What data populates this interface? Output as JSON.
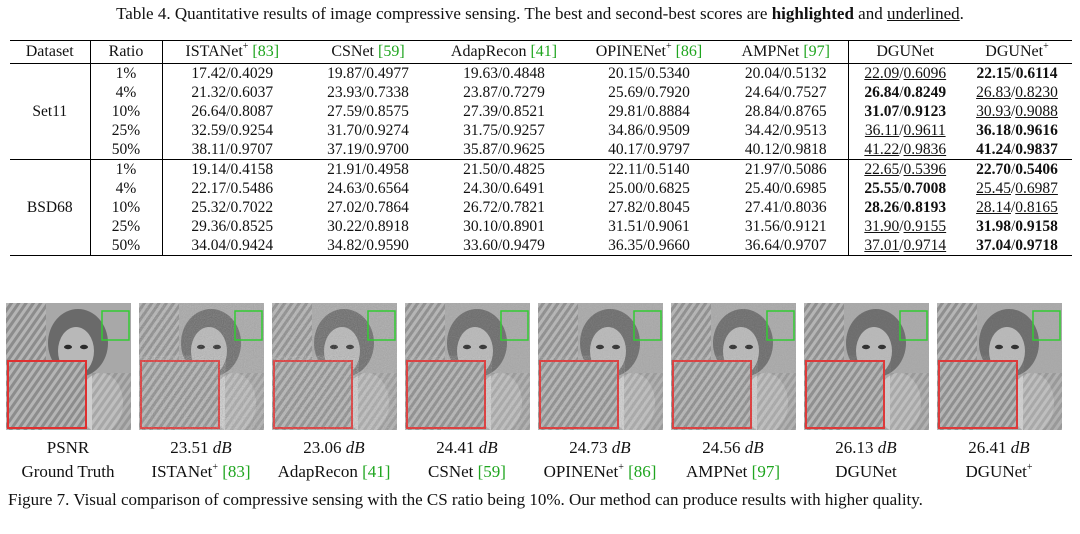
{
  "table_caption": {
    "prefix": "Table 4. Quantitative results of image compressive sensing. The best and second-best scores are",
    "bold_word": "highlighted",
    "middle": "and",
    "underline_word": "underlined",
    "suffix": "."
  },
  "columns": {
    "dataset": "Dataset",
    "ratio": "Ratio",
    "methods": [
      {
        "name": "ISTANet",
        "sup": "+",
        "cite": "[83]"
      },
      {
        "name": "CSNet",
        "sup": "",
        "cite": "[59]"
      },
      {
        "name": "AdapRecon",
        "sup": "",
        "cite": "[41]"
      },
      {
        "name": "OPINENet",
        "sup": "+",
        "cite": "[86]"
      },
      {
        "name": "AMPNet",
        "sup": "",
        "cite": "[97]"
      },
      {
        "name": "DGUNet",
        "sup": "",
        "cite": ""
      },
      {
        "name": "DGUNet",
        "sup": "+",
        "cite": ""
      }
    ]
  },
  "datasets": [
    {
      "name": "Set11",
      "rows": [
        {
          "ratio": "1%",
          "cells": [
            "17.42/0.4029",
            "19.87/0.4977",
            "19.63/0.4848",
            "20.15/0.5340",
            "20.04/0.5132",
            "22.09/0.6096",
            "22.15/0.6114"
          ],
          "styles": [
            "",
            "",
            "",
            "",
            "",
            "ul",
            "best"
          ]
        },
        {
          "ratio": "4%",
          "cells": [
            "21.32/0.6037",
            "23.93/0.7338",
            "23.87/0.7279",
            "25.69/0.7920",
            "24.64/0.7527",
            "26.84/0.8249",
            "26.83/0.8230"
          ],
          "styles": [
            "",
            "",
            "",
            "",
            "",
            "best",
            "ul"
          ]
        },
        {
          "ratio": "10%",
          "cells": [
            "26.64/0.8087",
            "27.59/0.8575",
            "27.39/0.8521",
            "29.81/0.8884",
            "28.84/0.8765",
            "31.07/0.9123",
            "30.93/0.9088"
          ],
          "styles": [
            "",
            "",
            "",
            "",
            "",
            "best",
            "ul"
          ]
        },
        {
          "ratio": "25%",
          "cells": [
            "32.59/0.9254",
            "31.70/0.9274",
            "31.75/0.9257",
            "34.86/0.9509",
            "34.42/0.9513",
            "36.11/0.9611",
            "36.18/0.9616"
          ],
          "styles": [
            "",
            "",
            "",
            "",
            "",
            "ul",
            "best"
          ]
        },
        {
          "ratio": "50%",
          "cells": [
            "38.11/0.9707",
            "37.19/0.9700",
            "35.87/0.9625",
            "40.17/0.9797",
            "40.12/0.9818",
            "41.22/0.9836",
            "41.24/0.9837"
          ],
          "styles": [
            "",
            "",
            "",
            "",
            "",
            "ul",
            "best"
          ]
        }
      ]
    },
    {
      "name": "BSD68",
      "rows": [
        {
          "ratio": "1%",
          "cells": [
            "19.14/0.4158",
            "21.91/0.4958",
            "21.50/0.4825",
            "22.11/0.5140",
            "21.97/0.5086",
            "22.65/0.5396",
            "22.70/0.5406"
          ],
          "styles": [
            "",
            "",
            "",
            "",
            "",
            "ul",
            "best"
          ]
        },
        {
          "ratio": "4%",
          "cells": [
            "22.17/0.5486",
            "24.63/0.6564",
            "24.30/0.6491",
            "25.00/0.6825",
            "25.40/0.6985",
            "25.55/0.7008",
            "25.45/0.6987"
          ],
          "styles": [
            "",
            "",
            "",
            "",
            "",
            "best",
            "ul"
          ]
        },
        {
          "ratio": "10%",
          "cells": [
            "25.32/0.7022",
            "27.02/0.7864",
            "26.72/0.7821",
            "27.82/0.8045",
            "27.41/0.8036",
            "28.26/0.8193",
            "28.14/0.8165"
          ],
          "styles": [
            "",
            "",
            "",
            "",
            "",
            "best",
            "ul"
          ]
        },
        {
          "ratio": "25%",
          "cells": [
            "29.36/0.8525",
            "30.22/0.8918",
            "30.10/0.8901",
            "31.51/0.9061",
            "31.56/0.9121",
            "31.90/0.9155",
            "31.98/0.9158"
          ],
          "styles": [
            "",
            "",
            "",
            "",
            "",
            "ul",
            "best"
          ]
        },
        {
          "ratio": "50%",
          "cells": [
            "34.04/0.9424",
            "34.82/0.9590",
            "33.60/0.9479",
            "36.35/0.9660",
            "36.64/0.9707",
            "37.01/0.9714",
            "37.04/0.9718"
          ],
          "styles": [
            "",
            "",
            "",
            "",
            "",
            "ul",
            "best"
          ]
        }
      ]
    }
  ],
  "figure": {
    "panels": [
      {
        "psnr": "PSNR",
        "psnr_unit": "",
        "name": "Ground Truth",
        "sup": "",
        "cite": "",
        "noise": 0
      },
      {
        "psnr": "23.51",
        "psnr_unit": "dB",
        "name": "ISTANet",
        "sup": "+",
        "cite": "[83]",
        "noise": 3
      },
      {
        "psnr": "23.06",
        "psnr_unit": "dB",
        "name": "AdapRecon",
        "sup": "",
        "cite": "[41]",
        "noise": 3
      },
      {
        "psnr": "24.41",
        "psnr_unit": "dB",
        "name": "CSNet",
        "sup": "",
        "cite": "[59]",
        "noise": 2
      },
      {
        "psnr": "24.73",
        "psnr_unit": "dB",
        "name": "OPINENet",
        "sup": "+",
        "cite": "[86]",
        "noise": 2
      },
      {
        "psnr": "24.56",
        "psnr_unit": "dB",
        "name": "AMPNet",
        "sup": "",
        "cite": "[97]",
        "noise": 2
      },
      {
        "psnr": "26.13",
        "psnr_unit": "dB",
        "name": "DGUNet",
        "sup": "",
        "cite": "",
        "noise": 1
      },
      {
        "psnr": "26.41",
        "psnr_unit": "dB",
        "name": "DGUNet",
        "sup": "+",
        "cite": "",
        "noise": 1
      }
    ],
    "caption": "Figure 7. Visual comparison of compressive sensing with the CS ratio being 10%. Our method can produce results with higher quality.",
    "colors": {
      "zoom_box": "#e03030",
      "roi_box": "#33cc33",
      "citation": "#1fa51f"
    }
  }
}
